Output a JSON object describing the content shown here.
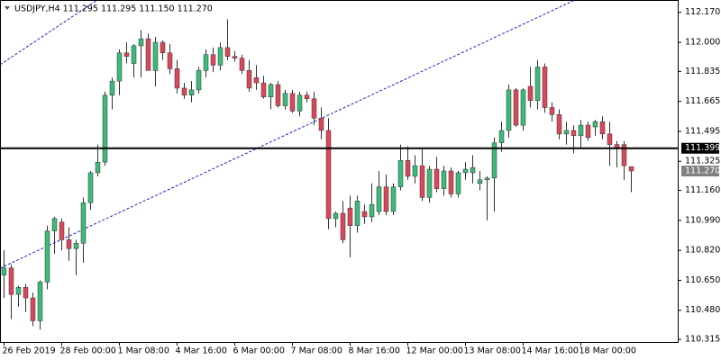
{
  "chart_data": {
    "type": "candlestick",
    "title": "USDJPY,H4  111.295 111.295 111.150 111.270",
    "categories": [
      "26 Feb 2019",
      null,
      null,
      null,
      null,
      null,
      null,
      null,
      "28 Feb 00:00",
      null,
      null,
      null,
      null,
      null,
      null,
      null,
      "1 Mar 08:00",
      null,
      null,
      null,
      null,
      null,
      null,
      null,
      "4 Mar 16:00",
      null,
      null,
      null,
      null,
      null,
      null,
      null,
      "6 Mar 00:00",
      null,
      null,
      null,
      null,
      null,
      null,
      null,
      "7 Mar 08:00",
      null,
      null,
      null,
      null,
      null,
      null,
      null,
      "8 Mar 16:00",
      null,
      null,
      null,
      null,
      null,
      null,
      null,
      "12 Mar 00:00",
      null,
      null,
      null,
      null,
      null,
      null,
      null,
      "13 Mar 08:00",
      null,
      null,
      null,
      null,
      null,
      null,
      null,
      "14 Mar 16:00",
      null,
      null,
      null,
      null,
      null,
      null,
      null,
      "18 Mar 00:00",
      null,
      null,
      null,
      null,
      null,
      null,
      null
    ],
    "open": [
      110.68,
      110.72,
      110.57,
      110.61,
      110.55,
      110.42,
      110.64,
      110.93,
      110.98,
      110.88,
      110.83,
      110.86,
      111.09,
      111.26,
      111.32,
      111.7,
      111.78,
      111.94,
      111.88,
      111.98,
      112.02,
      111.84,
      112.0,
      111.94,
      111.85,
      111.74,
      111.7,
      111.73,
      111.84,
      111.93,
      111.87,
      111.97,
      111.92,
      111.91,
      111.84,
      111.8,
      111.77,
      111.69,
      111.76,
      111.64,
      111.71,
      111.61,
      111.7,
      111.68,
      111.57,
      111.5,
      111.0,
      111.03,
      111.06,
      110.96,
      111.04,
      111.01,
      111.04,
      111.18,
      111.04,
      111.18,
      111.33,
      111.24,
      111.3,
      111.12,
      111.28,
      111.17,
      111.27,
      111.14,
      111.26,
      111.26,
      111.2,
      111.22,
      111.23,
      111.43,
      111.5,
      111.73,
      111.53,
      111.75,
      111.67,
      111.86,
      111.63,
      111.59,
      111.48,
      111.5,
      111.47,
      111.53,
      111.52,
      111.55,
      111.48,
      111.42,
      111.42,
      111.295
    ],
    "high": [
      110.82,
      110.74,
      110.62,
      110.63,
      110.58,
      110.65,
      110.96,
      111.01,
      111.0,
      110.95,
      110.88,
      111.12,
      111.27,
      111.42,
      111.72,
      111.8,
      111.96,
      112.0,
      111.99,
      112.07,
      112.05,
      112.03,
      112.01,
      111.99,
      111.9,
      111.77,
      111.78,
      111.86,
      111.96,
      111.97,
      112.0,
      112.13,
      111.95,
      111.93,
      111.9,
      111.87,
      111.81,
      111.77,
      111.78,
      111.73,
      111.73,
      111.72,
      111.72,
      111.72,
      111.63,
      111.57,
      111.04,
      111.1,
      111.13,
      111.13,
      111.08,
      111.2,
      111.27,
      111.25,
      111.2,
      111.42,
      111.41,
      111.36,
      111.4,
      111.3,
      111.35,
      111.3,
      111.29,
      111.27,
      111.32,
      111.36,
      111.27,
      111.24,
      111.46,
      111.55,
      111.76,
      111.74,
      111.74,
      111.86,
      111.9,
      111.88,
      111.66,
      111.62,
      111.55,
      111.53,
      111.56,
      111.55,
      111.56,
      111.58,
      111.55,
      111.44,
      111.44,
      111.295
    ],
    "low": [
      110.55,
      110.43,
      110.5,
      110.47,
      110.39,
      110.37,
      110.6,
      110.8,
      110.82,
      110.76,
      110.68,
      110.75,
      111.05,
      111.24,
      111.3,
      111.62,
      111.7,
      111.88,
      111.8,
      111.8,
      111.84,
      111.75,
      111.9,
      111.82,
      111.71,
      111.68,
      111.66,
      111.71,
      111.8,
      111.83,
      111.84,
      111.9,
      111.89,
      111.82,
      111.72,
      111.73,
      111.68,
      111.62,
      111.63,
      111.62,
      111.6,
      111.58,
      111.66,
      111.53,
      111.45,
      110.94,
      110.95,
      110.86,
      110.78,
      110.92,
      110.97,
      110.98,
      111.02,
      111.02,
      111.02,
      111.16,
      111.22,
      111.2,
      111.1,
      111.09,
      111.15,
      111.13,
      111.12,
      111.12,
      111.22,
      111.2,
      111.16,
      110.99,
      111.04,
      111.38,
      111.46,
      111.52,
      111.5,
      111.63,
      111.62,
      111.6,
      111.55,
      111.45,
      111.42,
      111.37,
      111.4,
      111.44,
      111.47,
      111.45,
      111.3,
      111.29,
      111.22,
      111.15
    ],
    "close": [
      110.72,
      110.57,
      110.61,
      110.55,
      110.42,
      110.64,
      110.93,
      111.0,
      110.88,
      110.83,
      110.86,
      111.09,
      111.26,
      111.32,
      111.7,
      111.78,
      111.94,
      111.92,
      111.98,
      112.02,
      111.84,
      112.0,
      111.94,
      111.85,
      111.74,
      111.7,
      111.73,
      111.84,
      111.93,
      111.87,
      111.97,
      111.92,
      111.91,
      111.84,
      111.74,
      111.77,
      111.69,
      111.76,
      111.64,
      111.71,
      111.61,
      111.7,
      111.68,
      111.57,
      111.5,
      111.0,
      111.03,
      110.88,
      110.96,
      111.1,
      111.01,
      111.08,
      111.18,
      111.04,
      111.18,
      111.33,
      111.24,
      111.3,
      111.12,
      111.28,
      111.17,
      111.27,
      111.14,
      111.26,
      111.28,
      111.29,
      111.22,
      111.23,
      111.43,
      111.5,
      111.73,
      111.53,
      111.73,
      111.67,
      111.86,
      111.63,
      111.59,
      111.48,
      111.5,
      111.47,
      111.53,
      111.46,
      111.55,
      111.48,
      111.42,
      111.4,
      111.3,
      111.27
    ],
    "up_color": "#3dba7a",
    "down_color": "#d9485a",
    "ylim": [
      110.3,
      112.24
    ],
    "yticks": [
      {
        "value": 112.17,
        "label": "112.170"
      },
      {
        "value": 112.0,
        "label": "112.000"
      },
      111.835,
      111.665,
      111.495,
      111.325,
      {
        "value": 111.16,
        "label": "111.160"
      },
      {
        "value": 110.99,
        "label": "110.990"
      },
      {
        "value": 110.82,
        "label": "110.820"
      },
      {
        "value": 110.65,
        "label": "110.650"
      },
      {
        "value": 110.48,
        "label": "110.480"
      },
      110.315
    ],
    "hline": 111.399,
    "last_price": {
      "value": 111.27,
      "label": "111.270"
    }
  }
}
